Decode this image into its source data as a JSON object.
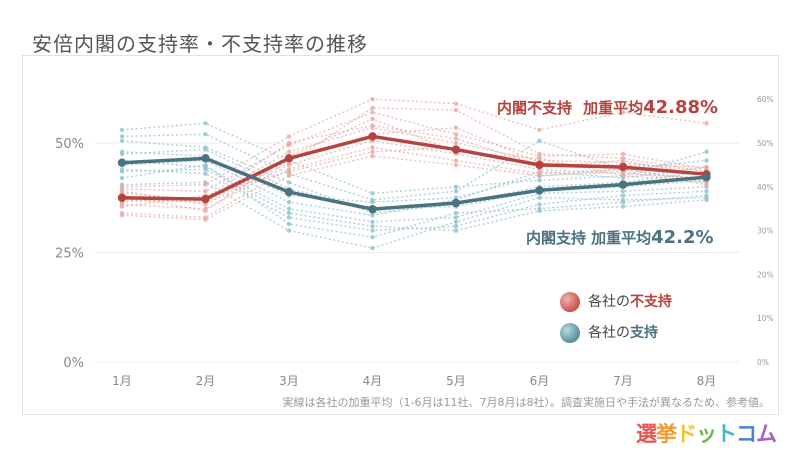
{
  "page_title": "安倍内閣の支持率・不支持率の推移",
  "footnote": "実線は各社の加重平均（1-6月は11社、7月8月は8社）。調査実施日や手法が異なるため、参考値。",
  "logo": {
    "chars": [
      "選",
      "挙",
      "ド",
      "ッ",
      "ト",
      "コ",
      "ム"
    ],
    "colors": [
      "#e8554e",
      "#f29a2e",
      "#f6c131",
      "#68b947",
      "#3fb5c9",
      "#4c7fd4",
      "#a061c9"
    ]
  },
  "annotations": {
    "disapprove_label": "内閣不支持",
    "disapprove_avg_prefix": "加重平均",
    "disapprove_avg_value": "42.88%",
    "approve_label": "内閣支持",
    "approve_avg_prefix": "加重平均",
    "approve_avg_value": "42.2%"
  },
  "legend": {
    "disapprove_prefix": "各社の",
    "disapprove_emph": "不支持",
    "approve_prefix": "各社の",
    "approve_emph": "支持"
  },
  "colors": {
    "disapprove": "#b5433e",
    "disapprove_light": "#e8a9a5",
    "approve": "#4b7280",
    "approve_light": "#8ec3cc",
    "grid": "#ececec"
  },
  "chart_data": {
    "type": "line",
    "categories": [
      "1月",
      "2月",
      "3月",
      "4月",
      "5月",
      "6月",
      "7月",
      "8月"
    ],
    "y_left_ticks": [
      "0%",
      "25%",
      "50%"
    ],
    "y_left_tick_values": [
      0,
      25,
      50
    ],
    "y_right_ticks": [
      "0%",
      "10%",
      "20%",
      "30%",
      "40%",
      "50%",
      "60%"
    ],
    "y_right_tick_values": [
      0,
      10,
      20,
      30,
      40,
      50,
      60
    ],
    "ylim": [
      0,
      62
    ],
    "grid": true,
    "series": [
      {
        "name": "内閣不支持",
        "values": [
          37.5,
          37.2,
          46.5,
          51.5,
          48.5,
          45.0,
          44.5,
          42.88
        ]
      },
      {
        "name": "内閣支持",
        "values": [
          45.5,
          46.5,
          38.8,
          34.9,
          36.3,
          39.2,
          40.5,
          42.2
        ]
      }
    ],
    "companies_disapprove": [
      [
        38.5,
        37.0,
        48.0,
        53.5,
        50.0,
        46.0,
        45.5,
        43.5
      ],
      [
        36.0,
        35.0,
        45.0,
        50.5,
        47.5,
        44.0,
        43.0,
        42.0
      ],
      [
        34.0,
        33.0,
        44.0,
        49.0,
        46.0,
        43.0,
        44.0,
        41.5
      ],
      [
        39.5,
        39.0,
        49.5,
        57.0,
        52.0,
        47.0,
        47.5,
        44.0
      ],
      [
        37.0,
        36.5,
        46.0,
        52.0,
        53.5,
        45.5,
        44.5,
        43.0
      ],
      [
        35.5,
        38.0,
        43.5,
        48.0,
        49.0,
        44.5,
        46.0,
        42.5
      ],
      [
        38.0,
        34.5,
        47.0,
        55.5,
        48.0,
        46.5,
        42.5,
        41.0
      ],
      [
        40.0,
        40.5,
        51.5,
        60.0,
        59.0,
        53.0,
        57.0,
        54.5
      ],
      [
        33.5,
        32.5,
        42.5,
        47.0,
        45.0,
        42.5,
        43.5,
        40.5
      ],
      [
        36.5,
        37.5,
        50.0,
        54.0,
        51.0,
        45.0,
        45.0,
        44.5
      ],
      [
        39.0,
        36.0,
        45.5,
        58.0,
        57.5,
        47.5,
        46.5,
        43.5
      ]
    ],
    "companies_approve": [
      [
        53.0,
        54.5,
        46.0,
        38.5,
        40.0,
        41.5,
        42.5,
        48.0
      ],
      [
        50.5,
        49.0,
        41.0,
        34.0,
        36.0,
        40.0,
        41.0,
        43.5
      ],
      [
        48.0,
        47.0,
        38.0,
        36.5,
        37.5,
        42.5,
        44.0,
        41.0
      ],
      [
        46.0,
        44.5,
        35.0,
        32.0,
        33.0,
        38.5,
        39.0,
        40.0
      ],
      [
        44.0,
        43.0,
        33.0,
        30.0,
        31.0,
        36.0,
        38.0,
        39.0
      ],
      [
        42.0,
        45.0,
        31.5,
        28.5,
        34.0,
        35.0,
        36.5,
        38.0
      ],
      [
        51.5,
        52.0,
        43.0,
        37.0,
        39.0,
        50.5,
        44.0,
        46.0
      ],
      [
        40.5,
        41.0,
        30.0,
        26.0,
        32.0,
        37.5,
        37.0,
        37.5
      ],
      [
        47.5,
        48.5,
        39.5,
        35.0,
        35.5,
        39.0,
        40.0,
        41.5
      ],
      [
        45.0,
        46.0,
        36.5,
        33.5,
        37.0,
        43.5,
        42.0,
        44.5
      ],
      [
        43.5,
        44.0,
        34.0,
        31.0,
        30.0,
        34.5,
        35.5,
        37.0
      ]
    ]
  }
}
